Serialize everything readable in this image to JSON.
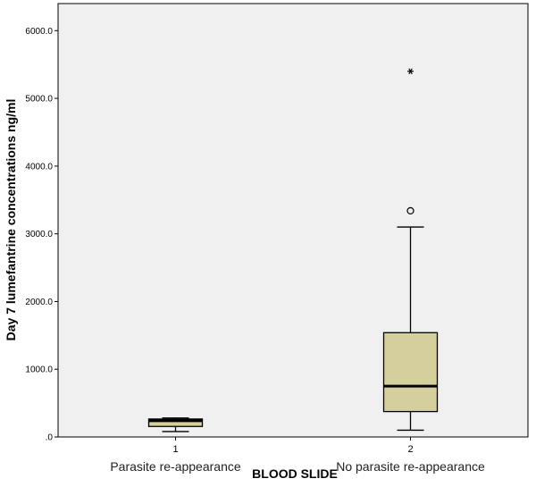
{
  "colors": {
    "plot_background": "#f0f0f0",
    "box_fill": "#d5cf9d",
    "line": "#000000"
  },
  "chart_data": {
    "type": "boxplot",
    "xlabel": "BLOOD SLIDE",
    "ylabel": "Day 7 lumefantrine concentrations ng/ml",
    "ylim": [
      0,
      6400
    ],
    "ytick_values": [
      0,
      1000,
      2000,
      3000,
      4000,
      5000,
      6000
    ],
    "ytick_labels": [
      ".0",
      "1000.0",
      "2000.0",
      "3000.0",
      "4000.0",
      "5000.0",
      "6000.0"
    ],
    "grid": false,
    "categories": [
      {
        "tick": "1",
        "label": "Parasite re-appearance",
        "whisker_low": 80,
        "q1": 155,
        "median": 240,
        "q3": 265,
        "whisker_high": 280,
        "outliers": [],
        "extremes": []
      },
      {
        "tick": "2",
        "label": "No parasite re-appearance",
        "whisker_low": 100,
        "q1": 375,
        "median": 750,
        "q3": 1540,
        "whisker_high": 3100,
        "outliers": [
          3340
        ],
        "extremes": [
          5400
        ]
      }
    ]
  }
}
